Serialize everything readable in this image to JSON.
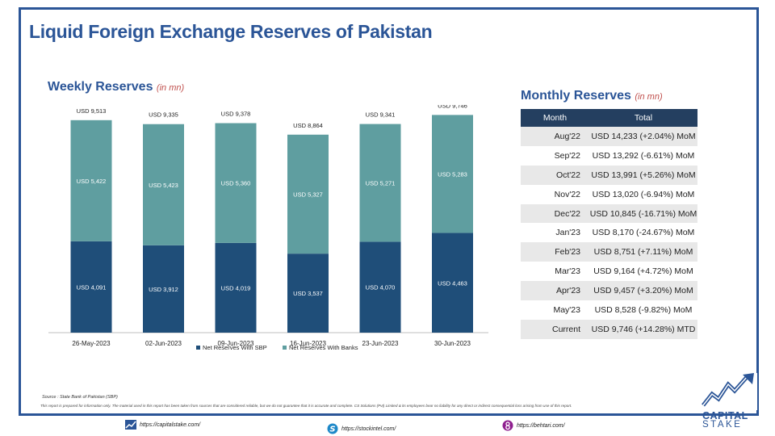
{
  "title": "Liquid Foreign Exchange Reserves of Pakistan",
  "weekly": {
    "title": "Weekly Reserves",
    "unit": "(in mn)"
  },
  "monthly": {
    "title": "Monthly Reserves",
    "unit": "(in mn)",
    "headers": [
      "Month",
      "Total"
    ],
    "rows": [
      {
        "month": "Aug'22",
        "total": "USD 14,233 (+2.04%) MoM"
      },
      {
        "month": "Sep'22",
        "total": "USD 13,292 (-6.61%) MoM"
      },
      {
        "month": "Oct'22",
        "total": "USD 13,991 (+5.26%) MoM"
      },
      {
        "month": "Nov'22",
        "total": "USD 13,020 (-6.94%) MoM"
      },
      {
        "month": "Dec'22",
        "total": "USD 10,845 (-16.71%) MoM"
      },
      {
        "month": "Jan'23",
        "total": "USD 8,170 (-24.67%) MoM"
      },
      {
        "month": "Feb'23",
        "total": "USD 8,751 (+7.11%) MoM"
      },
      {
        "month": "Mar'23",
        "total": "USD 9,164 (+4.72%) MoM"
      },
      {
        "month": "Apr'23",
        "total": "USD 9,457 (+3.20%) MoM"
      },
      {
        "month": "May'23",
        "total": "USD 8,528 (-9.82%) MoM"
      },
      {
        "month": "Current",
        "total": "USD 9,746 (+14.28%) MTD"
      }
    ]
  },
  "chart_data": {
    "type": "bar",
    "stacked": true,
    "categories": [
      "26-May-2023",
      "02-Jun-2023",
      "09-Jun-2023",
      "16-Jun-2023",
      "23-Jun-2023",
      "30-Jun-2023"
    ],
    "series": [
      {
        "name": "Net Reserves With SBP",
        "color": "#1f4e79",
        "values": [
          4091,
          3912,
          4019,
          3537,
          4070,
          4463
        ],
        "labels": [
          "USD 4,091",
          "USD 3,912",
          "USD 4,019",
          "USD 3,537",
          "USD 4,070",
          "USD 4,463"
        ]
      },
      {
        "name": "Net Reserves With Banks",
        "color": "#5f9ea0",
        "values": [
          5422,
          5423,
          5360,
          5327,
          5271,
          5283
        ],
        "labels": [
          "USD 5,422",
          "USD 5,423",
          "USD 5,360",
          "USD 5,327",
          "USD 5,271",
          "USD 5,283"
        ]
      }
    ],
    "totals": [
      9513,
      9335,
      9378,
      8864,
      9341,
      9746
    ],
    "total_labels": [
      "USD 9,513",
      "USD 9,335",
      "USD 9,378",
      "USD 8,864",
      "USD 9,341",
      "USD 9,746"
    ],
    "ylim": [
      0,
      10500
    ],
    "legend": "bottom",
    "grid": false
  },
  "source": "Source : State Bank of Pakistan (SBP)",
  "disclaimer": "This report is prepared for information only. The material used in this report has been taken from sources that are considered reliable, but we do not guarantee that it is accurate and complete. CS Solutions (Pvt) Limited & its employees bear no liability for any direct or indirect consequential loss arising from use of this report.",
  "footer": {
    "links": [
      "https://capitalstake.com/",
      "https://stockintel.com/",
      "https://behtari.com/"
    ]
  },
  "logo": {
    "line1": "CAPITAL",
    "line2": "STAKE"
  },
  "colors": {
    "brand": "#2b5597",
    "accent": "#c0504d",
    "table_header": "#243f60",
    "row_alt": "#e8e8e8"
  }
}
